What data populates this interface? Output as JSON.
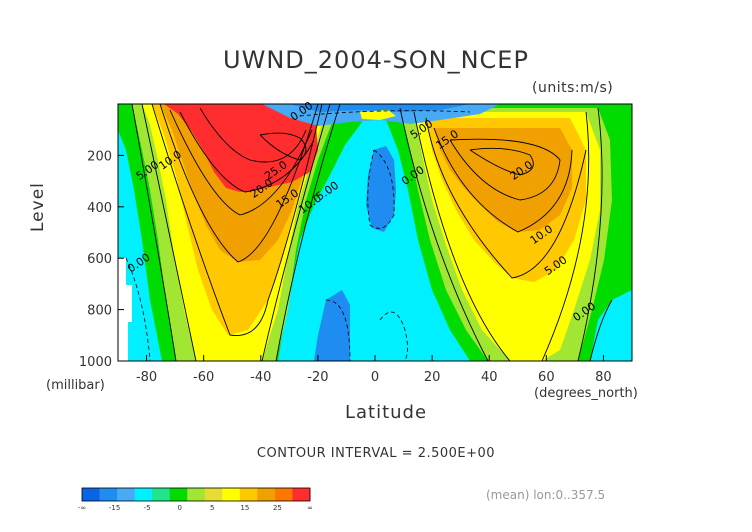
{
  "chart_data": {
    "type": "heatmap",
    "title": "UWND_2004-SON_NCEP",
    "units": "(units:m/s)",
    "xlabel": "Latitude",
    "x_unit": "(degrees_north)",
    "ylabel": "Level",
    "y_unit": "(millibar)",
    "xlim": [
      -90,
      90
    ],
    "ylim": [
      1000,
      0
    ],
    "x_ticks": [
      -80,
      -60,
      -40,
      -20,
      0,
      20,
      40,
      60,
      80
    ],
    "y_ticks": [
      200,
      400,
      600,
      800,
      1000
    ],
    "contour_interval": "CONTOUR INTERVAL = 2.500E+00",
    "contour_labels": [
      {
        "text": "0.00",
        "lat": -25,
        "lev": 40
      },
      {
        "text": "5.00",
        "lat": 17,
        "lev": 110
      },
      {
        "text": "15.0",
        "lat": 26,
        "lev": 150
      },
      {
        "text": "20.0",
        "lat": 52,
        "lev": 270
      },
      {
        "text": "25.0",
        "lat": -34,
        "lev": 270
      },
      {
        "text": "20.0",
        "lat": -39,
        "lev": 340
      },
      {
        "text": "15.0",
        "lat": -30,
        "lev": 380
      },
      {
        "text": "10.0",
        "lat": -22,
        "lev": 400
      },
      {
        "text": "5.00",
        "lat": -16,
        "lev": 350
      },
      {
        "text": "10.0",
        "lat": -71,
        "lev": 230
      },
      {
        "text": "5.00",
        "lat": -79,
        "lev": 270
      },
      {
        "text": "0.00",
        "lat": -82,
        "lev": 630
      },
      {
        "text": "0.00",
        "lat": 14,
        "lev": 290
      },
      {
        "text": "10.0",
        "lat": 59,
        "lev": 520
      },
      {
        "text": "5.00",
        "lat": 64,
        "lev": 640
      },
      {
        "text": "0.00",
        "lat": 74,
        "lev": 820
      }
    ],
    "colorbar": {
      "colors": [
        "#0a64e6",
        "#1e8cf0",
        "#46aaf5",
        "#00f0ff",
        "#22e58a",
        "#00dc00",
        "#a0e632",
        "#e6dc32",
        "#ffff00",
        "#ffc800",
        "#f0a000",
        "#fa7800",
        "#ff2d2d"
      ],
      "labels": [
        "-∞",
        "-15",
        "-5",
        "0",
        "5",
        "15",
        "25",
        "∞"
      ]
    }
  },
  "footer": {
    "mean_note": "(mean) lon:0..357.5"
  }
}
